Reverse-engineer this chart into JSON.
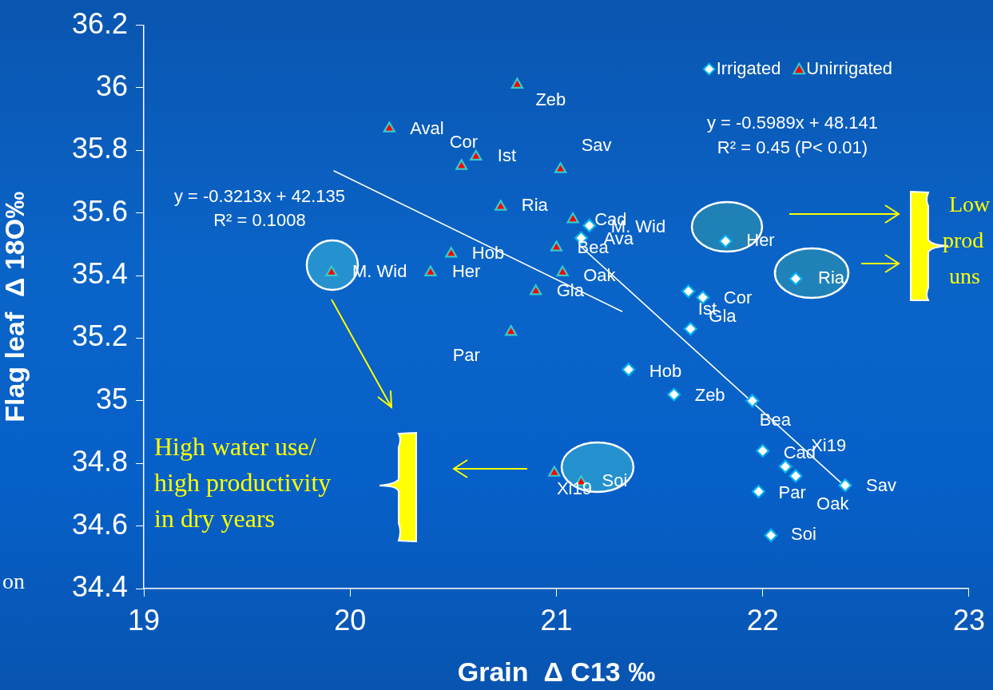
{
  "chart_data": {
    "type": "scatter",
    "xlabel": "Grain  Δ C13 ‰",
    "ylabel": "Flag leaf  Δ 18O‰",
    "xlim": [
      19,
      23
    ],
    "xticks": [
      19,
      20,
      21,
      22,
      23
    ],
    "ylim": [
      34.4,
      36.2
    ],
    "yticks": [
      34.4,
      34.6,
      34.8,
      35,
      35.2,
      35.4,
      35.6,
      35.8,
      36,
      36.2
    ],
    "grid": false,
    "legend": "top right",
    "series": [
      {
        "name": "Irrigated",
        "type": "scatter",
        "marker": "diamond",
        "color": "#ffffff",
        "x": [
          21.82,
          22.16,
          21.16,
          21.12,
          21.71,
          21.64,
          21.65,
          21.35,
          21.57,
          21.95,
          22.0,
          22.11,
          22.16,
          21.98,
          22.4,
          22.04
        ],
        "values": [
          35.51,
          35.39,
          35.56,
          35.52,
          35.33,
          35.35,
          35.23,
          35.1,
          35.02,
          35.0,
          34.84,
          34.79,
          34.76,
          34.71,
          34.73,
          34.57
        ]
      },
      {
        "name": "Unirrigated",
        "type": "scatter",
        "marker": "triangle",
        "color": "#ff0000",
        "x": [
          20.81,
          20.19,
          20.54,
          20.61,
          21.02,
          20.73,
          21.08,
          21.0,
          20.49,
          20.39,
          19.91,
          21.03,
          20.9,
          20.78,
          20.99,
          21.12
        ],
        "values": [
          36.01,
          35.87,
          35.75,
          35.78,
          35.74,
          35.62,
          35.58,
          35.49,
          35.47,
          35.41,
          35.41,
          35.41,
          35.35,
          35.22,
          34.77,
          34.74
        ]
      },
      {
        "type": "line",
        "marker": "none",
        "color": "#ffffff",
        "x": [
          19.92,
          21.32
        ],
        "values": [
          35.735,
          35.285
        ]
      },
      {
        "type": "line",
        "marker": "none",
        "color": "#ffffff",
        "x": [
          21.11,
          22.41
        ],
        "values": [
          35.498,
          34.72
        ]
      }
    ],
    "annotations": [
      {
        "text": "Her",
        "x": 21.82,
        "y": 35.51
      },
      {
        "text": "Ria",
        "x": 22.16,
        "y": 35.39
      },
      {
        "text": "M. Wid",
        "x": 21.16,
        "y": 35.56
      },
      {
        "text": "Ava",
        "x": 21.12,
        "y": 35.52
      },
      {
        "text": "Cor",
        "x": 21.71,
        "y": 35.33
      },
      {
        "text": "Ist",
        "x": 21.64,
        "y": 35.35
      },
      {
        "text": "Gla",
        "x": 21.65,
        "y": 35.23
      },
      {
        "text": "Hob",
        "x": 21.35,
        "y": 35.1
      },
      {
        "text": "Zeb",
        "x": 21.57,
        "y": 35.02
      },
      {
        "text": "Bea",
        "x": 21.95,
        "y": 35.0
      },
      {
        "text": "Cad",
        "x": 22.0,
        "y": 34.84
      },
      {
        "text": "Xi19",
        "x": 22.11,
        "y": 34.79
      },
      {
        "text": "Oak",
        "x": 22.16,
        "y": 34.76
      },
      {
        "text": "Par",
        "x": 21.98,
        "y": 34.71
      },
      {
        "text": "Sav",
        "x": 22.4,
        "y": 34.73
      },
      {
        "text": "Soi",
        "x": 22.04,
        "y": 34.57
      },
      {
        "text": "Zeb",
        "x": 20.81,
        "y": 36.01
      },
      {
        "text": "Aval",
        "x": 20.19,
        "y": 35.87
      },
      {
        "text": "Cor",
        "x": 20.54,
        "y": 35.75
      },
      {
        "text": "Ist",
        "x": 20.61,
        "y": 35.78
      },
      {
        "text": "Sav",
        "x": 21.02,
        "y": 35.74
      },
      {
        "text": "Ria",
        "x": 20.73,
        "y": 35.62
      },
      {
        "text": "Cad",
        "x": 21.08,
        "y": 35.58
      },
      {
        "text": "Bea",
        "x": 21.0,
        "y": 35.49
      },
      {
        "text": "Hob",
        "x": 20.49,
        "y": 35.47
      },
      {
        "text": "Her",
        "x": 20.39,
        "y": 35.41
      },
      {
        "text": "M. Wid",
        "x": 19.91,
        "y": 35.41
      },
      {
        "text": "Oak",
        "x": 21.03,
        "y": 35.41
      },
      {
        "text": "Gla",
        "x": 20.9,
        "y": 35.35
      },
      {
        "text": "Par",
        "x": 20.78,
        "y": 35.22
      },
      {
        "text": "Xi19",
        "x": 20.99,
        "y": 34.77
      },
      {
        "text": "Soi",
        "x": 21.12,
        "y": 34.74
      },
      "y = -0.5989x + 48.141",
      "R² = 0.45 (P< 0.01)",
      "y = -0.3213x + 42.135",
      "R² = 0.1008",
      "High water use/",
      "high productivity",
      "in dry years",
      "Low",
      "prod",
      "uns",
      "on"
    ]
  }
}
